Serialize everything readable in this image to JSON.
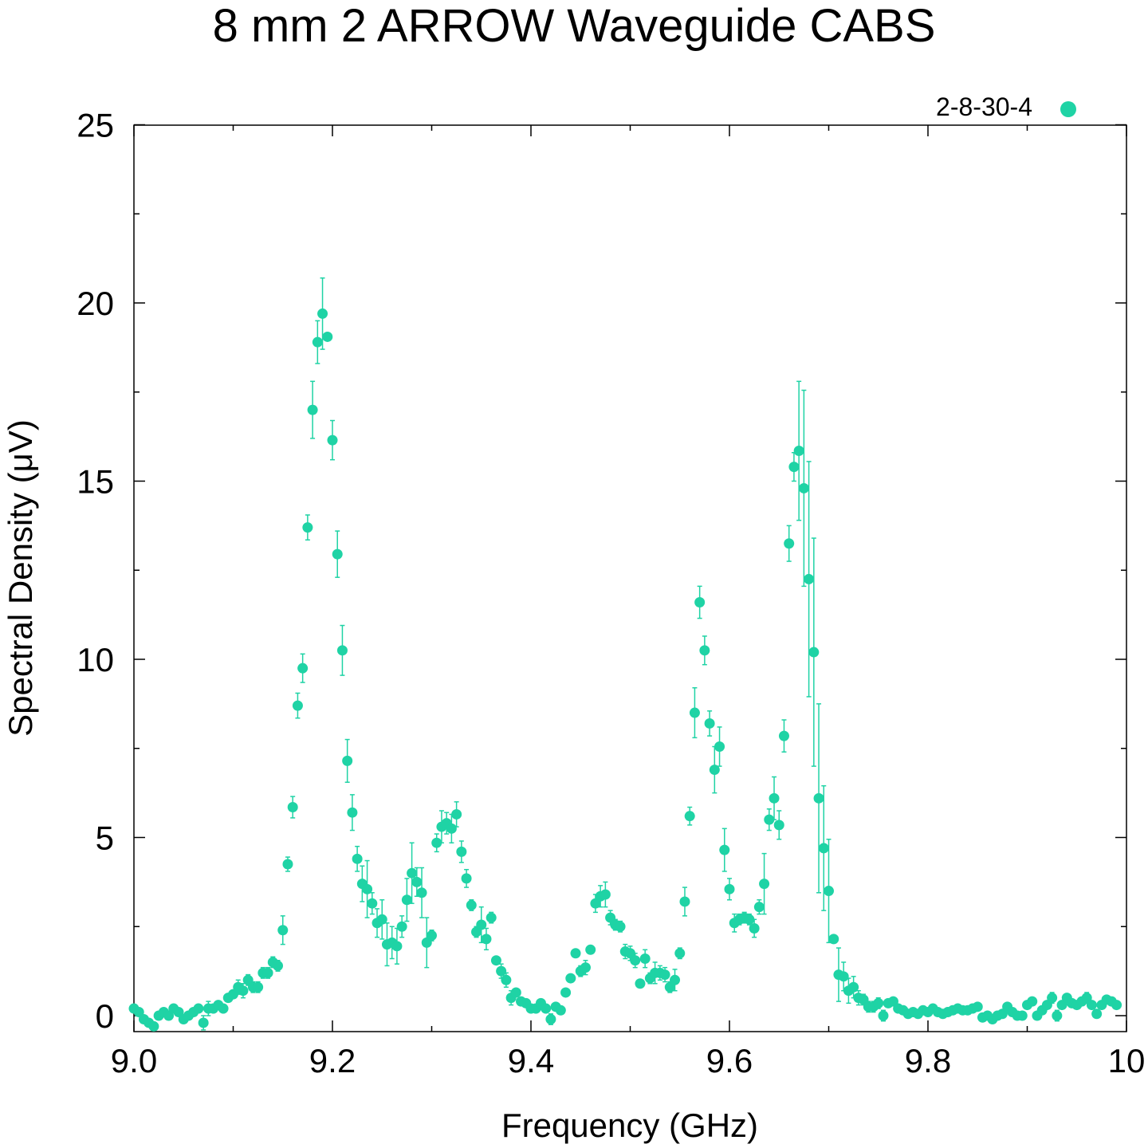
{
  "chart_data": {
    "type": "scatter",
    "title": "8 mm 2 ARROW Waveguide CABS",
    "xlabel": "Frequency (GHz)",
    "ylabel": "Spectral Density (μV)",
    "xlim": [
      9.0,
      10.0
    ],
    "ylim": [
      -0.5,
      25
    ],
    "x_ticks": [
      9.0,
      9.2,
      9.4,
      9.6,
      9.8,
      10.0
    ],
    "x_tick_labels": [
      "9.0",
      "9.2",
      "9.4",
      "9.6",
      "9.8",
      "10"
    ],
    "y_ticks": [
      0,
      5,
      10,
      15,
      20,
      25
    ],
    "y_tick_labels": [
      "0",
      "5",
      "10",
      "15",
      "20",
      "25"
    ],
    "grid": false,
    "legend": "top-right",
    "color": "#1fd3a5",
    "series": [
      {
        "name": "2-8-30-4",
        "points": [
          [
            9.0,
            0.2,
            0.1
          ],
          [
            9.005,
            0.1,
            0.1
          ],
          [
            9.01,
            -0.1,
            0.1
          ],
          [
            9.015,
            -0.2,
            0.1
          ],
          [
            9.02,
            -0.3,
            0.1
          ],
          [
            9.025,
            0.0,
            0.1
          ],
          [
            9.03,
            0.1,
            0.1
          ],
          [
            9.035,
            0.0,
            0.1
          ],
          [
            9.04,
            0.2,
            0.1
          ],
          [
            9.045,
            0.1,
            0.1
          ],
          [
            9.05,
            -0.1,
            0.1
          ],
          [
            9.055,
            0.0,
            0.1
          ],
          [
            9.06,
            0.1,
            0.1
          ],
          [
            9.065,
            0.2,
            0.1
          ],
          [
            9.07,
            -0.2,
            0.2
          ],
          [
            9.075,
            0.2,
            0.2
          ],
          [
            9.08,
            0.2,
            0.1
          ],
          [
            9.085,
            0.3,
            0.1
          ],
          [
            9.09,
            0.2,
            0.1
          ],
          [
            9.095,
            0.5,
            0.1
          ],
          [
            9.1,
            0.6,
            0.1
          ],
          [
            9.105,
            0.8,
            0.2
          ],
          [
            9.11,
            0.7,
            0.2
          ],
          [
            9.115,
            1.0,
            0.15
          ],
          [
            9.12,
            0.8,
            0.15
          ],
          [
            9.125,
            0.8,
            0.15
          ],
          [
            9.13,
            1.2,
            0.15
          ],
          [
            9.135,
            1.2,
            0.15
          ],
          [
            9.14,
            1.5,
            0.15
          ],
          [
            9.145,
            1.4,
            0.15
          ],
          [
            9.15,
            2.4,
            0.4
          ],
          [
            9.155,
            4.25,
            0.2
          ],
          [
            9.16,
            5.85,
            0.3
          ],
          [
            9.165,
            8.7,
            0.35
          ],
          [
            9.17,
            9.75,
            0.4
          ],
          [
            9.175,
            13.7,
            0.35
          ],
          [
            9.18,
            17.0,
            0.8
          ],
          [
            9.185,
            18.9,
            0.6
          ],
          [
            9.19,
            19.7,
            1.0
          ],
          [
            9.195,
            19.05,
            0.1
          ],
          [
            9.2,
            16.15,
            0.55
          ],
          [
            9.205,
            12.95,
            0.65
          ],
          [
            9.21,
            10.25,
            0.7
          ],
          [
            9.215,
            7.15,
            0.6
          ],
          [
            9.22,
            5.7,
            0.5
          ],
          [
            9.225,
            4.4,
            0.35
          ],
          [
            9.23,
            3.7,
            0.5
          ],
          [
            9.235,
            3.55,
            0.8
          ],
          [
            9.24,
            3.15,
            0.3
          ],
          [
            9.245,
            2.6,
            0.4
          ],
          [
            9.25,
            2.7,
            0.55
          ],
          [
            9.255,
            2.0,
            0.6
          ],
          [
            9.26,
            2.05,
            0.45
          ],
          [
            9.265,
            1.95,
            0.5
          ],
          [
            9.27,
            2.5,
            0.3
          ],
          [
            9.275,
            3.25,
            0.6
          ],
          [
            9.28,
            4.0,
            0.85
          ],
          [
            9.285,
            3.75,
            0.4
          ],
          [
            9.29,
            3.45,
            0.7
          ],
          [
            9.295,
            2.05,
            0.7
          ],
          [
            9.3,
            2.25,
            0.15
          ],
          [
            9.305,
            4.85,
            0.25
          ],
          [
            9.31,
            5.3,
            0.45
          ],
          [
            9.315,
            5.4,
            0.3
          ],
          [
            9.32,
            5.25,
            0.4
          ],
          [
            9.325,
            5.65,
            0.35
          ],
          [
            9.33,
            4.6,
            0.3
          ],
          [
            9.335,
            3.85,
            0.25
          ],
          [
            9.34,
            3.1,
            0.15
          ],
          [
            9.345,
            2.35,
            0.15
          ],
          [
            9.35,
            2.55,
            0.5
          ],
          [
            9.355,
            2.15,
            0.3
          ],
          [
            9.36,
            2.75,
            0.15
          ],
          [
            9.365,
            1.55,
            0.1
          ],
          [
            9.37,
            1.25,
            0.2
          ],
          [
            9.375,
            1.0,
            0.2
          ],
          [
            9.38,
            0.5,
            0.2
          ],
          [
            9.385,
            0.65,
            0.1
          ],
          [
            9.39,
            0.4,
            0.1
          ],
          [
            9.395,
            0.35,
            0.1
          ],
          [
            9.4,
            0.2,
            0.1
          ],
          [
            9.405,
            0.2,
            0.1
          ],
          [
            9.41,
            0.35,
            0.1
          ],
          [
            9.415,
            0.2,
            0.1
          ],
          [
            9.42,
            -0.1,
            0.15
          ],
          [
            9.425,
            0.25,
            0.1
          ],
          [
            9.43,
            0.15,
            0.1
          ],
          [
            9.435,
            0.65,
            0.1
          ],
          [
            9.44,
            1.05,
            0.1
          ],
          [
            9.445,
            1.75,
            0.1
          ],
          [
            9.45,
            1.25,
            0.15
          ],
          [
            9.455,
            1.35,
            0.2
          ],
          [
            9.46,
            1.85,
            0.1
          ],
          [
            9.465,
            3.15,
            0.25
          ],
          [
            9.47,
            3.35,
            0.3
          ],
          [
            9.475,
            3.4,
            0.35
          ],
          [
            9.48,
            2.75,
            0.2
          ],
          [
            9.485,
            2.55,
            0.15
          ],
          [
            9.49,
            2.5,
            0.15
          ],
          [
            9.495,
            1.8,
            0.2
          ],
          [
            9.5,
            1.75,
            0.2
          ],
          [
            9.505,
            1.55,
            0.2
          ],
          [
            9.51,
            0.9,
            0.1
          ],
          [
            9.515,
            1.6,
            0.25
          ],
          [
            9.52,
            1.05,
            0.15
          ],
          [
            9.525,
            1.2,
            0.3
          ],
          [
            9.53,
            1.2,
            0.2
          ],
          [
            9.535,
            1.15,
            0.2
          ],
          [
            9.54,
            0.8,
            0.15
          ],
          [
            9.545,
            1.0,
            0.3
          ],
          [
            9.55,
            1.75,
            0.15
          ],
          [
            9.555,
            3.2,
            0.4
          ],
          [
            9.56,
            5.6,
            0.25
          ],
          [
            9.565,
            8.5,
            0.7
          ],
          [
            9.57,
            11.6,
            0.45
          ],
          [
            9.575,
            10.25,
            0.4
          ],
          [
            9.58,
            8.2,
            0.35
          ],
          [
            9.585,
            6.9,
            0.65
          ],
          [
            9.59,
            7.55,
            0.55
          ],
          [
            9.595,
            4.65,
            0.6
          ],
          [
            9.6,
            3.55,
            0.3
          ],
          [
            9.605,
            2.6,
            0.25
          ],
          [
            9.61,
            2.7,
            0.15
          ],
          [
            9.615,
            2.75,
            0.15
          ],
          [
            9.62,
            2.7,
            0.15
          ],
          [
            9.625,
            2.45,
            0.25
          ],
          [
            9.63,
            3.05,
            0.2
          ],
          [
            9.635,
            3.7,
            0.85
          ],
          [
            9.64,
            5.5,
            0.3
          ],
          [
            9.645,
            6.1,
            0.6
          ],
          [
            9.65,
            5.35,
            0.4
          ],
          [
            9.655,
            7.85,
            0.45
          ],
          [
            9.66,
            13.25,
            0.5
          ],
          [
            9.665,
            15.4,
            0.4
          ],
          [
            9.67,
            15.85,
            1.95
          ],
          [
            9.675,
            14.8,
            2.75
          ],
          [
            9.68,
            12.25,
            3.3
          ],
          [
            9.685,
            10.2,
            3.2
          ],
          [
            9.69,
            6.1,
            2.65
          ],
          [
            9.695,
            4.7,
            1.75
          ],
          [
            9.7,
            3.5,
            1.45
          ],
          [
            9.705,
            2.15,
            0.1
          ],
          [
            9.71,
            1.15,
            0.75
          ],
          [
            9.715,
            1.1,
            0.4
          ],
          [
            9.72,
            0.7,
            0.35
          ],
          [
            9.725,
            0.8,
            0.3
          ],
          [
            9.73,
            0.5,
            0.2
          ],
          [
            9.735,
            0.45,
            0.15
          ],
          [
            9.74,
            0.25,
            0.15
          ],
          [
            9.745,
            0.25,
            0.15
          ],
          [
            9.75,
            0.35,
            0.15
          ],
          [
            9.755,
            0.0,
            0.15
          ],
          [
            9.76,
            0.35,
            0.1
          ],
          [
            9.765,
            0.4,
            0.1
          ],
          [
            9.77,
            0.2,
            0.1
          ],
          [
            9.775,
            0.15,
            0.1
          ],
          [
            9.78,
            0.05,
            0.1
          ],
          [
            9.785,
            0.1,
            0.1
          ],
          [
            9.79,
            0.05,
            0.1
          ],
          [
            9.795,
            0.15,
            0.1
          ],
          [
            9.8,
            0.1,
            0.1
          ],
          [
            9.805,
            0.2,
            0.1
          ],
          [
            9.81,
            0.1,
            0.1
          ],
          [
            9.815,
            0.05,
            0.1
          ],
          [
            9.82,
            0.1,
            0.1
          ],
          [
            9.825,
            0.15,
            0.1
          ],
          [
            9.83,
            0.2,
            0.1
          ],
          [
            9.835,
            0.15,
            0.1
          ],
          [
            9.84,
            0.15,
            0.1
          ],
          [
            9.845,
            0.2,
            0.1
          ],
          [
            9.85,
            0.25,
            0.1
          ],
          [
            9.855,
            -0.05,
            0.1
          ],
          [
            9.86,
            0.0,
            0.1
          ],
          [
            9.865,
            -0.1,
            0.1
          ],
          [
            9.87,
            0.0,
            0.1
          ],
          [
            9.875,
            0.05,
            0.1
          ],
          [
            9.88,
            0.25,
            0.1
          ],
          [
            9.885,
            0.1,
            0.1
          ],
          [
            9.89,
            0.0,
            0.1
          ],
          [
            9.895,
            0.0,
            0.1
          ],
          [
            9.9,
            0.3,
            0.1
          ],
          [
            9.905,
            0.4,
            0.1
          ],
          [
            9.91,
            0.0,
            0.1
          ],
          [
            9.915,
            0.15,
            0.1
          ],
          [
            9.92,
            0.3,
            0.1
          ],
          [
            9.925,
            0.5,
            0.15
          ],
          [
            9.93,
            0.0,
            0.15
          ],
          [
            9.935,
            0.3,
            0.1
          ],
          [
            9.94,
            0.5,
            0.1
          ],
          [
            9.945,
            0.35,
            0.1
          ],
          [
            9.95,
            0.3,
            0.1
          ],
          [
            9.955,
            0.4,
            0.1
          ],
          [
            9.96,
            0.5,
            0.15
          ],
          [
            9.965,
            0.3,
            0.1
          ],
          [
            9.97,
            0.05,
            0.1
          ],
          [
            9.975,
            0.3,
            0.1
          ],
          [
            9.98,
            0.45,
            0.1
          ],
          [
            9.985,
            0.4,
            0.1
          ],
          [
            9.99,
            0.3,
            0.1
          ]
        ]
      }
    ]
  }
}
